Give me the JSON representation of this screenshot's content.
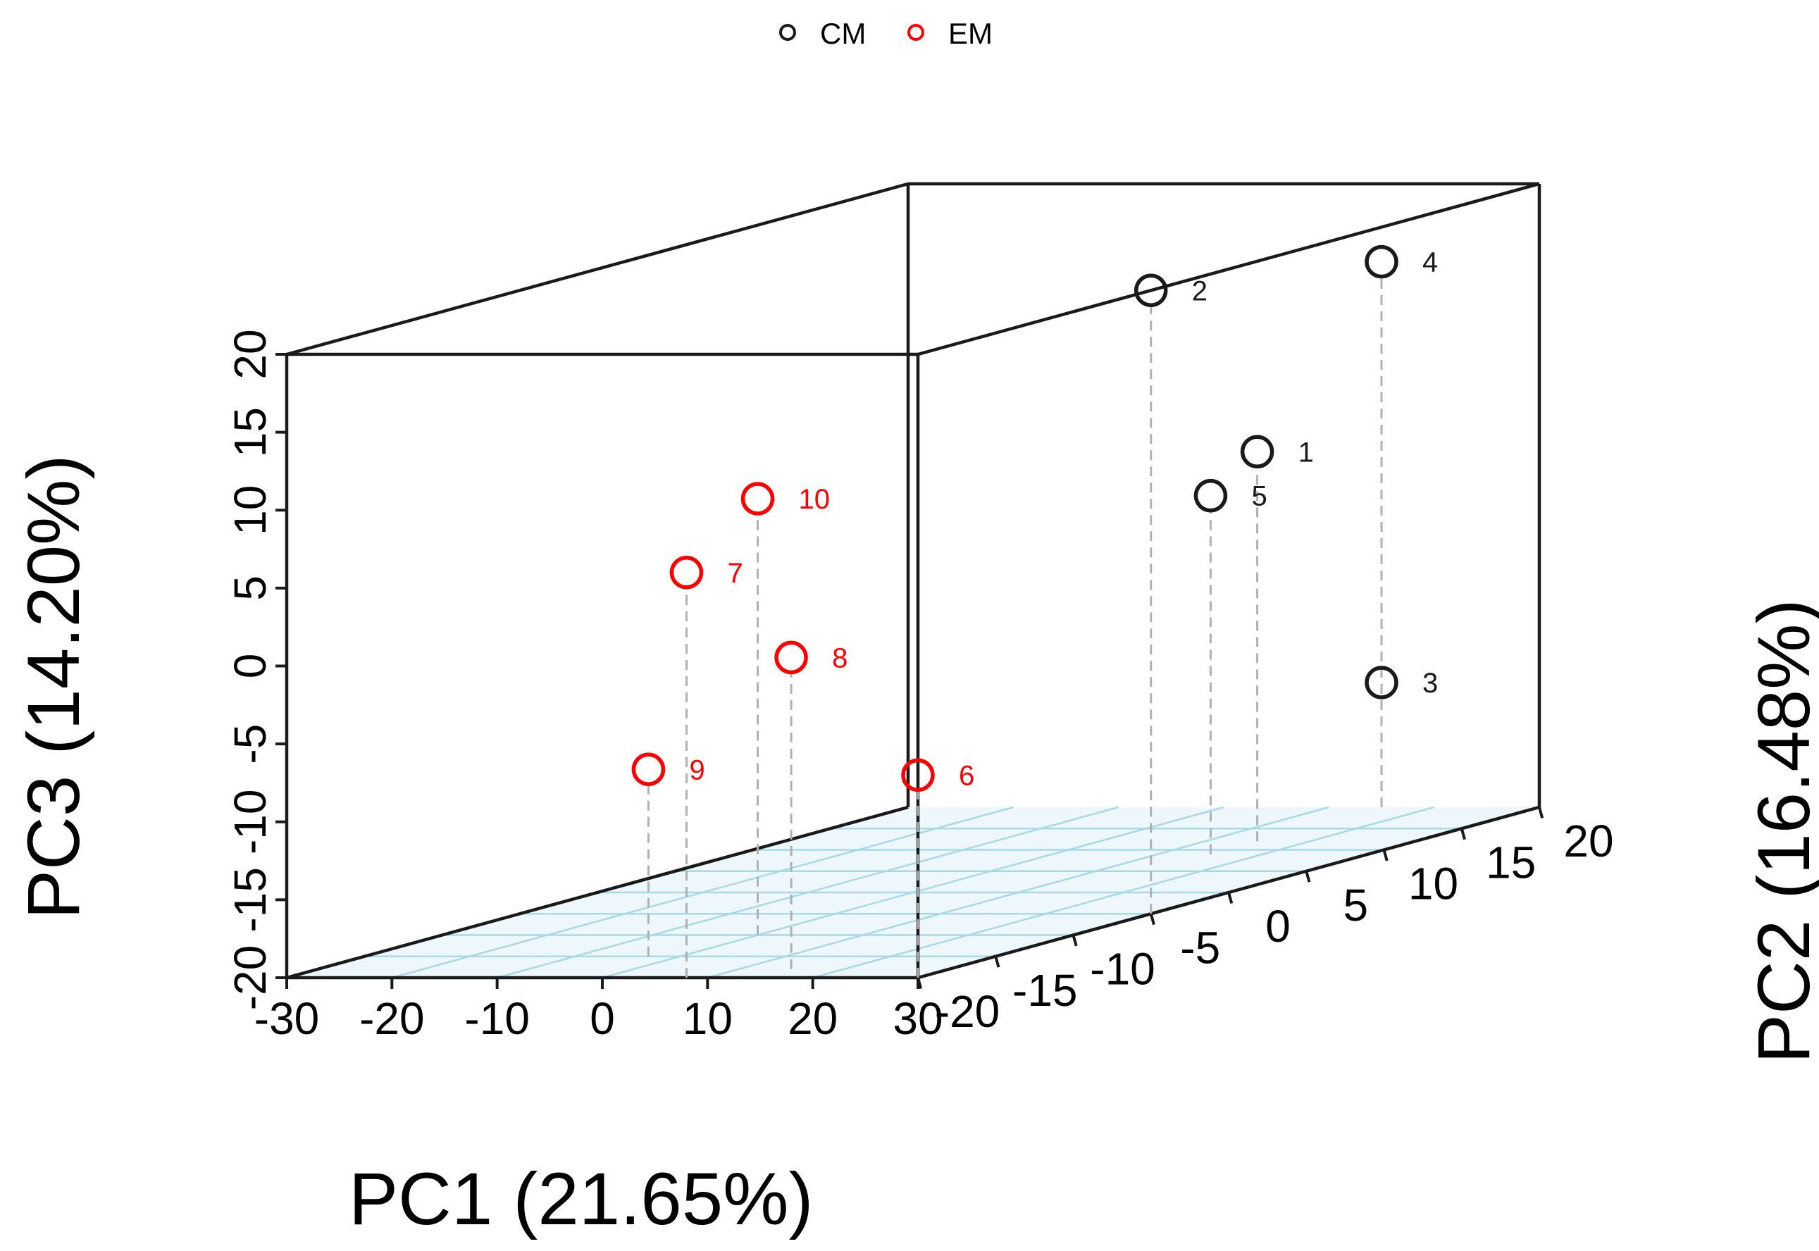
{
  "chart_data": {
    "type": "scatter",
    "subtype": "3d-scatter",
    "legend": {
      "placement": "top-center",
      "entries": [
        {
          "label": "CM",
          "color": "#1a1a1a"
        },
        {
          "label": "EM",
          "color": "#ff0000"
        }
      ]
    },
    "axes": {
      "x": {
        "label": "PC1 (21.65%)",
        "range": [
          -30,
          30
        ],
        "ticks": [
          -30,
          -20,
          -10,
          0,
          10,
          20,
          30
        ]
      },
      "y": {
        "label": "PC2 (16.48%)",
        "range": [
          -20,
          20
        ],
        "ticks": [
          -20,
          -15,
          -10,
          -5,
          0,
          5,
          10,
          15,
          20
        ]
      },
      "z": {
        "label": "PC3 (14.20%)",
        "range": [
          -20,
          20
        ],
        "ticks": [
          -20,
          -15,
          -10,
          -5,
          0,
          5,
          10,
          15,
          20
        ]
      }
    },
    "colors": {
      "box": "#1a1a1a",
      "grid": "#a9d8e8",
      "drop": "#b0b0b0",
      "CM": "#1a1a1a",
      "EM": "#ff0000"
    },
    "points": [
      {
        "label": "1",
        "group": "CM",
        "x": 15,
        "y": 12,
        "z": 5
      },
      {
        "label": "2",
        "group": "CM",
        "x": 30,
        "y": -5,
        "z": 20
      },
      {
        "label": "3",
        "group": "CM",
        "x": 15,
        "y": 20,
        "z": -12
      },
      {
        "label": "4",
        "group": "CM",
        "x": 15,
        "y": 20,
        "z": 15
      },
      {
        "label": "5",
        "group": "CM",
        "x": 15,
        "y": 9,
        "z": 3
      },
      {
        "label": "6",
        "group": "EM",
        "x": 30,
        "y": -20,
        "z": -7
      },
      {
        "label": "7",
        "group": "EM",
        "x": 8,
        "y": -20,
        "z": 6
      },
      {
        "label": "8",
        "group": "EM",
        "x": 15,
        "y": -18,
        "z": 0
      },
      {
        "label": "9",
        "group": "EM",
        "x": -3,
        "y": -15,
        "z": -8
      },
      {
        "label": "10",
        "group": "EM",
        "x": 0,
        "y": -10,
        "z": 8
      }
    ]
  }
}
